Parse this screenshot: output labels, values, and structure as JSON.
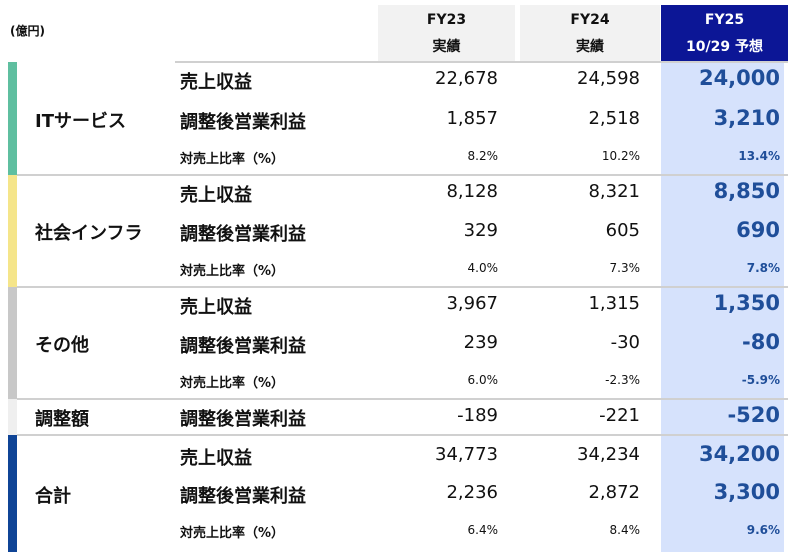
{
  "unit": "(億円)",
  "headers": [
    {
      "line1": "FY23",
      "line2": "実績"
    },
    {
      "line1": "FY24",
      "line2": "実績"
    },
    {
      "line1": "FY25",
      "line2": "10/29 予想"
    }
  ],
  "colors": {
    "it": "#5fbfa0",
    "infra": "#f5e58a",
    "other": "#c8c8c8",
    "adj": "#efefef",
    "total": "#0f4496",
    "fy25_header": "#0c1696",
    "fy25_bg": "#d6e2fc",
    "fy25_text": "#1f4e99"
  },
  "sections": [
    {
      "name": "ITサービス",
      "rows": [
        {
          "label": "売上収益",
          "values": [
            "22,678",
            "24,598",
            "24,000"
          ]
        },
        {
          "label": "調整後営業利益",
          "values": [
            "1,857",
            "2,518",
            "3,210"
          ]
        },
        {
          "label": "対売上比率（%）",
          "values": [
            "8.2%",
            "10.2%",
            "13.4%"
          ]
        }
      ]
    },
    {
      "name": "社会インフラ",
      "rows": [
        {
          "label": "売上収益",
          "values": [
            "8,128",
            "8,321",
            "8,850"
          ]
        },
        {
          "label": "調整後営業利益",
          "values": [
            "329",
            "605",
            "690"
          ]
        },
        {
          "label": "対売上比率（%）",
          "values": [
            "4.0%",
            "7.3%",
            "7.8%"
          ]
        }
      ]
    },
    {
      "name": "その他",
      "rows": [
        {
          "label": "売上収益",
          "values": [
            "3,967",
            "1,315",
            "1,350"
          ]
        },
        {
          "label": "調整後営業利益",
          "values": [
            "239",
            "-30",
            "-80"
          ]
        },
        {
          "label": "対売上比率（%）",
          "values": [
            "6.0%",
            "-2.3%",
            "-5.9%"
          ]
        }
      ]
    },
    {
      "name": "調整額",
      "rows": [
        {
          "label": "調整後営業利益",
          "values": [
            "-189",
            "-221",
            "-520"
          ]
        }
      ]
    },
    {
      "name": "合計",
      "rows": [
        {
          "label": "売上収益",
          "values": [
            "34,773",
            "34,234",
            "34,200"
          ]
        },
        {
          "label": "調整後営業利益",
          "values": [
            "2,236",
            "2,872",
            "3,300"
          ]
        },
        {
          "label": "対売上比率（%）",
          "values": [
            "6.4%",
            "8.4%",
            "9.6%"
          ]
        }
      ]
    }
  ]
}
